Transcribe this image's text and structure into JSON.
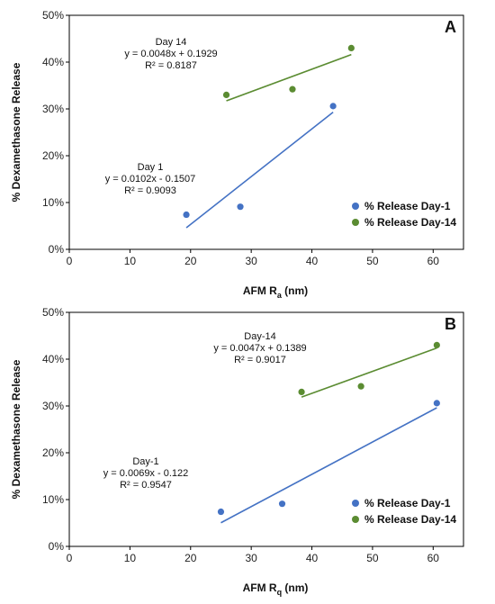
{
  "chart_data": [
    {
      "type": "scatter",
      "panel_label": "A",
      "xlabel_main": "AFM R",
      "xlabel_sub": "a",
      "xlabel_unit": " (nm)",
      "ylabel": "% Dexamethasone Release",
      "xlim": [
        0,
        65
      ],
      "ylim": [
        0,
        0.5
      ],
      "xticks": [
        0,
        10,
        20,
        30,
        40,
        50,
        60
      ],
      "xtick_labels": [
        "0",
        "10",
        "20",
        "30",
        "40",
        "50",
        "60"
      ],
      "yticks": [
        0,
        0.1,
        0.2,
        0.3,
        0.4,
        0.5
      ],
      "ytick_labels": [
        "0%",
        "10%",
        "20%",
        "30%",
        "40%",
        "50%"
      ],
      "grid": false,
      "legend_position": "bottom-right",
      "series": [
        {
          "name": "% Release Day-1",
          "color": "#4472c4",
          "x": [
            19.3,
            28.2,
            43.5
          ],
          "y": [
            0.074,
            0.091,
            0.306
          ],
          "trendline": {
            "slope": 0.0102,
            "intercept": -0.1507,
            "x_range": [
              19.3,
              43.5
            ]
          },
          "annotation": [
            "Day 1",
            "y = 0.0102x - 0.1507",
            "R² = 0.9093"
          ]
        },
        {
          "name": "% Release Day-14",
          "color": "#5b8c32",
          "x": [
            25.9,
            36.8,
            46.5
          ],
          "y": [
            0.33,
            0.342,
            0.43
          ],
          "trendline": {
            "slope": 0.0048,
            "intercept": 0.1929,
            "x_range": [
              25.9,
              46.5
            ]
          },
          "annotation": [
            "Day 14",
            "y = 0.0048x + 0.1929",
            "R² = 0.8187"
          ]
        }
      ]
    },
    {
      "type": "scatter",
      "panel_label": "B",
      "xlabel_main": "AFM R",
      "xlabel_sub": "q",
      "xlabel_unit": " (nm)",
      "ylabel": "% Dexamethasone Release",
      "xlim": [
        0,
        65
      ],
      "ylim": [
        0,
        0.5
      ],
      "xticks": [
        0,
        10,
        20,
        30,
        40,
        50,
        60
      ],
      "xtick_labels": [
        "0",
        "10",
        "20",
        "30",
        "40",
        "50",
        "60"
      ],
      "yticks": [
        0,
        0.1,
        0.2,
        0.3,
        0.4,
        0.5
      ],
      "ytick_labels": [
        "0%",
        "10%",
        "20%",
        "30%",
        "40%",
        "50%"
      ],
      "grid": false,
      "legend_position": "bottom-right",
      "series": [
        {
          "name": "% Release Day-1",
          "color": "#4472c4",
          "x": [
            25.0,
            35.1,
            60.6
          ],
          "y": [
            0.074,
            0.091,
            0.306
          ],
          "trendline": {
            "slope": 0.0069,
            "intercept": -0.122,
            "x_range": [
              25.0,
              60.6
            ]
          },
          "annotation": [
            "Day-1",
            "y = 0.0069x - 0.122",
            "R² = 0.9547"
          ]
        },
        {
          "name": "% Release Day-14",
          "color": "#5b8c32",
          "x": [
            38.3,
            48.1,
            60.6
          ],
          "y": [
            0.33,
            0.342,
            0.43
          ],
          "trendline": {
            "slope": 0.0047,
            "intercept": 0.1389,
            "x_range": [
              38.3,
              60.6
            ]
          },
          "annotation": [
            "Day-14",
            "y = 0.0047x + 0.1389",
            "R² = 0.9017"
          ]
        }
      ]
    }
  ]
}
